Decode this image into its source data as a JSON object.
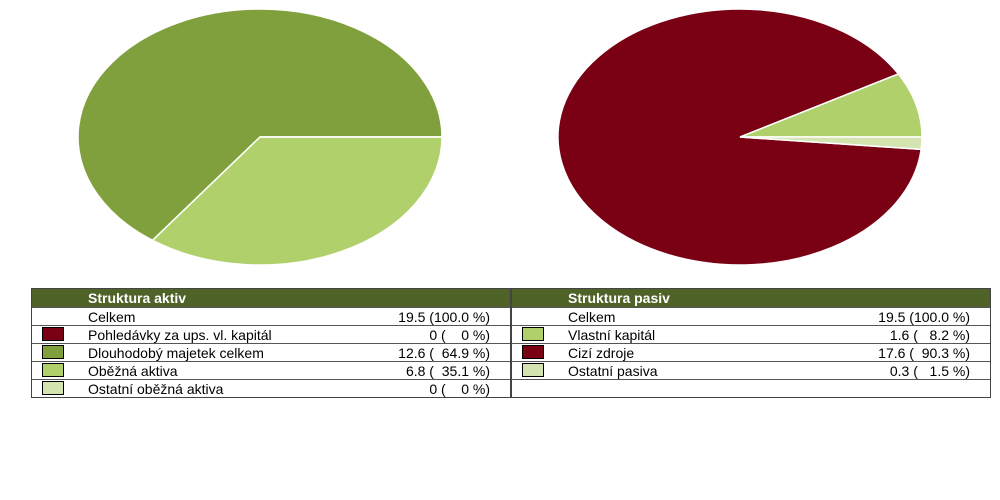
{
  "chart_data": [
    {
      "type": "pie",
      "title": "Struktura aktiv",
      "total_label": "Celkem",
      "total_value_label": "19.5 (100.0 %)",
      "categories": [
        "Pohledávky za ups. vl. kapitál",
        "Dlouhodobý majetek celkem",
        "Oběžná aktiva",
        "Ostatní oběžná aktiva"
      ],
      "values": [
        0,
        12.6,
        6.8,
        0
      ],
      "value_labels": [
        "0 (    0 %)",
        "12.6 (  64.9 %)",
        "6.8 (  35.1 %)",
        "0 (    0 %)"
      ],
      "colors": [
        "#7a0014",
        "#7fa03c",
        "#b0d06c",
        "#d4e4b0"
      ]
    },
    {
      "type": "pie",
      "title": "Struktura pasiv",
      "total_label": "Celkem",
      "total_value_label": "19.5 (100.0 %)",
      "categories": [
        "Vlastní kapitál",
        "Cizí zdroje",
        "Ostatní pasiva"
      ],
      "values": [
        1.6,
        17.6,
        0.3
      ],
      "value_labels": [
        "1.6 (   8.2 %)",
        "17.6 (  90.3 %)",
        "0.3 (   1.5 %)"
      ],
      "colors": [
        "#b0d06c",
        "#7a0014",
        "#d4e4b0"
      ]
    }
  ]
}
